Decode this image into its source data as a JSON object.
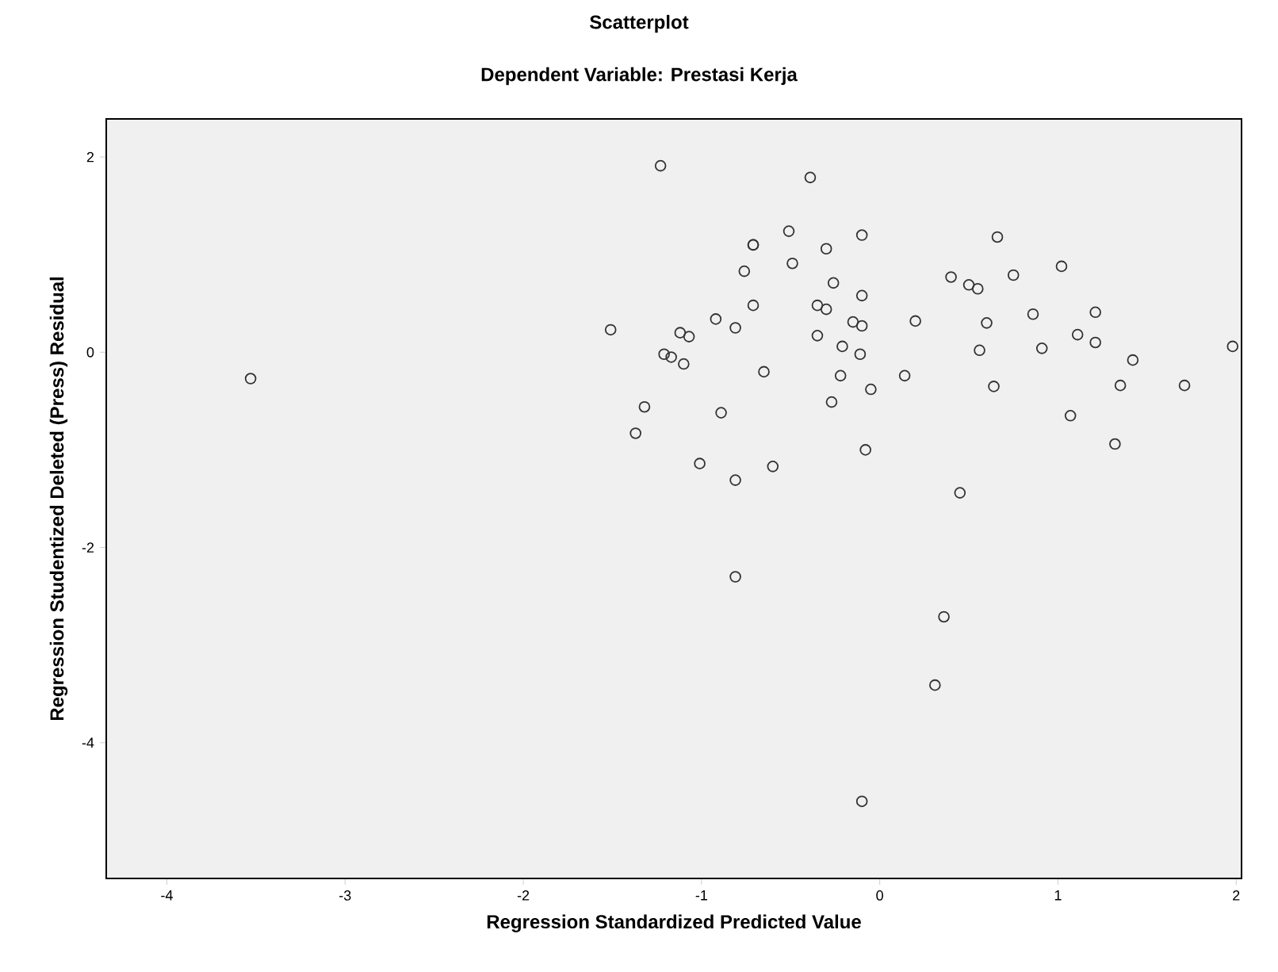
{
  "chart_data": {
    "type": "scatter",
    "title": "Scatterplot",
    "subtitle": "Dependent Variable: Prestasi Kerja",
    "xlabel": "Regression Standardized Predicted Value",
    "ylabel": "Regression Studentized Deleted (Press) Residual",
    "xlim": [
      -4.34,
      2.03
    ],
    "ylim": [
      -5.39,
      2.39
    ],
    "xticks": [
      -4,
      -3,
      -2,
      -1,
      0,
      1,
      2
    ],
    "yticks": [
      -4,
      -2,
      0,
      2
    ],
    "marker": "circle",
    "grid": false,
    "series": [
      {
        "color": "#333333",
        "x": [
          -1.23,
          -0.39,
          -0.51,
          -0.71,
          -0.71,
          -0.1,
          -0.3,
          0.66,
          -0.76,
          -0.49,
          -0.26,
          0.4,
          0.5,
          0.55,
          0.75,
          1.02,
          -0.1,
          -0.71,
          -0.35,
          -0.3,
          -0.92,
          -0.81,
          -1.12,
          -1.07,
          -0.35,
          -0.15,
          -0.1,
          0.2,
          0.6,
          0.86,
          1.21,
          1.11,
          1.21,
          0.91,
          0.56,
          1.98,
          1.42,
          -0.21,
          -0.11,
          -1.21,
          -1.17,
          -1.1,
          -0.65,
          -0.22,
          0.14,
          -0.05,
          0.64,
          1.35,
          1.71,
          -0.27,
          -1.32,
          -0.89,
          1.07,
          -1.37,
          1.32,
          -0.08,
          -1.01,
          -0.6,
          -0.81,
          0.45,
          -1.51,
          -3.53,
          -0.81,
          0.36,
          0.31,
          -0.1
        ],
        "values": [
          1.91,
          1.79,
          1.24,
          1.1,
          1.1,
          1.2,
          1.06,
          1.18,
          0.83,
          0.91,
          0.71,
          0.77,
          0.69,
          0.65,
          0.79,
          0.88,
          0.58,
          0.48,
          0.48,
          0.44,
          0.34,
          0.25,
          0.2,
          0.16,
          0.17,
          0.31,
          0.27,
          0.32,
          0.3,
          0.39,
          0.41,
          0.18,
          0.1,
          0.04,
          0.02,
          0.06,
          -0.08,
          0.06,
          -0.02,
          -0.02,
          -0.05,
          -0.12,
          -0.2,
          -0.24,
          -0.24,
          -0.38,
          -0.35,
          -0.34,
          -0.34,
          -0.51,
          -0.56,
          -0.62,
          -0.65,
          -0.83,
          -0.94,
          -1.0,
          -1.14,
          -1.17,
          -1.31,
          -1.44,
          0.23,
          -0.27,
          -2.3,
          -2.71,
          -3.41,
          -4.6
        ]
      }
    ]
  }
}
